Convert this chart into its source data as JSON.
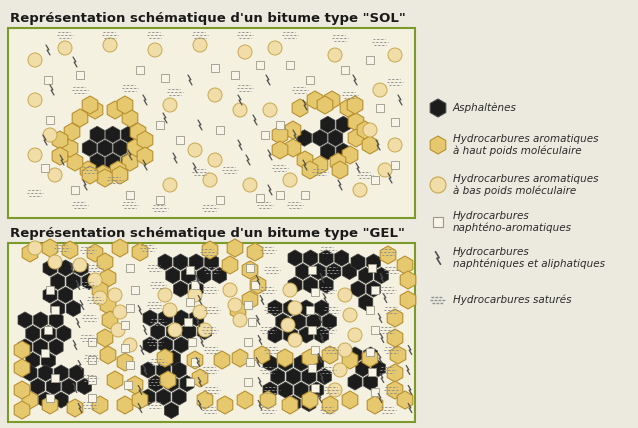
{
  "bg_color": "#eceade",
  "panel_bg": "#f4f1e0",
  "border_color": "#7a9a2a",
  "title_sol": "Représentation schématique d'un bitume type \"SOL\"",
  "title_gel": "Représentation schématique d'un bitume type \"GEL\"",
  "asphaltene_color": "#1c1c1c",
  "asphaltene_edge": "#444444",
  "hpm_fill": "#e6c96e",
  "hpm_edge": "#b89030",
  "hbm_fill": "#f0dda8",
  "hbm_edge": "#c8a850",
  "sq_fill": "#f8f5e8",
  "sq_edge": "#999988",
  "napht_color": "#505050",
  "sat_color": "#909090",
  "legend_labels": [
    "Asphaltènes",
    "Hydrocarbures aromatiques\nà haut poids moléculaire",
    "Hydrocarbures aromatiques\nà bas poids moléculaire",
    "Hydrocarbures\nnaphténo-aromatiques",
    "Hydrocarbures\nnaphténiques et aliphatiques",
    "Hydrocarbures saturés"
  ],
  "font_size_title": 9.5,
  "font_size_legend": 7.5
}
